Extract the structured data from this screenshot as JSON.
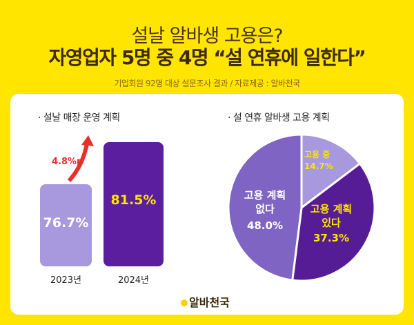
{
  "header": {
    "title": "설날 알바생 고용은?",
    "headline": "자영업자 5명 중 4명 “설 연휴에 일한다”",
    "subtitle": "기업회원 92명 대상 설문조사 결과 / 자료제공 : 알바천국"
  },
  "chart_data": [
    {
      "type": "bar",
      "title": "· 설날 매장 운영 계획",
      "categories": [
        "2023년",
        "2024년"
      ],
      "values": [
        76.7,
        81.5
      ],
      "value_labels": [
        "76.7%",
        "81.5%"
      ],
      "annotation": "4.8%p",
      "colors": [
        "#a898dd",
        "#5a1e9e"
      ]
    },
    {
      "type": "pie",
      "title": "· 설 연휴 알바생 고용 계획",
      "slices": [
        {
          "label": "고용 중",
          "value": 14.7,
          "value_label": "14.7%",
          "color": "#a898dd",
          "text_color": "#ffe500"
        },
        {
          "label": "고용 계획 있다",
          "value": 37.3,
          "value_label": "37.3%",
          "color": "#551c96",
          "text_color": "#ffe500"
        },
        {
          "label": "고용 계획 없다",
          "value": 48.0,
          "value_label": "48.0%",
          "color": "#7f64c4",
          "text_color": "#ffffff"
        }
      ]
    }
  ],
  "logo": {
    "text": "알바천국"
  },
  "colors": {
    "background": "#ffe500",
    "arrow": "#e8302a"
  }
}
